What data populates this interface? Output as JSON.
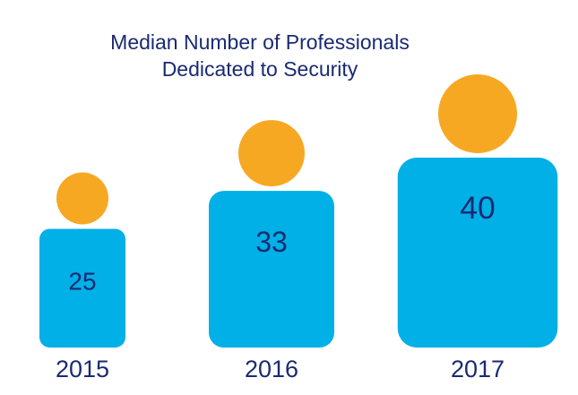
{
  "chart_data": {
    "type": "pictograph",
    "title_lines": [
      "Median Number of Professionals",
      "Dedicated to Security"
    ],
    "categories": [
      "2015",
      "2016",
      "2017"
    ],
    "values": [
      25,
      33,
      40
    ],
    "data_labels": [
      "25",
      "33",
      "40"
    ],
    "grid": false,
    "legend": "none"
  },
  "colors": {
    "title_text": "#1a2a72",
    "body_fill": "#00b0e6",
    "head_fill": "#f7a823",
    "value_text": "#1a2a72",
    "category_text": "#1a2a72"
  }
}
